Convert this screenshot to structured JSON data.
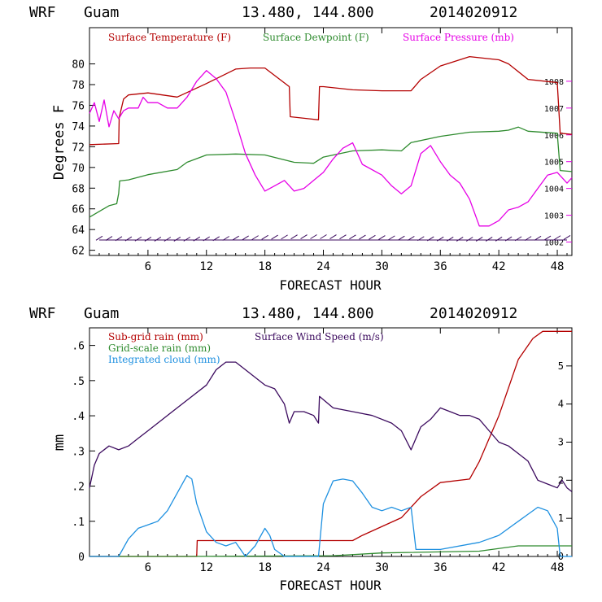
{
  "colors": {
    "temperature": "#b40000",
    "dewpoint": "#2e8b2e",
    "pressure": "#e600e6",
    "wind_barbs": "#3b0a5e",
    "subgrid_rain": "#b40000",
    "gridscale_rain": "#2e8b2e",
    "cloud": "#1e90e0",
    "wind_speed": "#3b0a5e"
  },
  "chart_data": [
    {
      "type": "line",
      "header": {
        "model": "WRF",
        "location": "Guam",
        "coords": "13.480, 144.800",
        "init": "2014020912"
      },
      "title": "",
      "xlabel": "FORECAST HOUR",
      "ylabel": "Degrees F",
      "xlim": [
        0,
        49.5
      ],
      "ylim": [
        61.5,
        83.5
      ],
      "y2lim": [
        1001.5,
        1010.0
      ],
      "xticks": [
        "6",
        "12",
        "18",
        "24",
        "30",
        "36",
        "42",
        "48"
      ],
      "yticks": [
        "62",
        "64",
        "66",
        "68",
        "70",
        "72",
        "74",
        "76",
        "78",
        "80"
      ],
      "y2ticks": [
        "1002",
        "1003",
        "1004",
        "1005",
        "1006",
        "1007",
        "1008"
      ],
      "grid": false,
      "legend_position": "top",
      "series": [
        {
          "name": "Surface Temperature (F)",
          "axis": "left",
          "x": [
            0,
            3,
            3.05,
            3.5,
            4,
            6,
            9,
            12,
            15,
            16.5,
            17.5,
            18,
            20.5,
            20.6,
            23.5,
            23.6,
            24,
            27,
            30,
            33,
            34,
            36,
            39,
            42,
            43,
            45,
            47,
            48,
            48.3,
            49.5
          ],
          "values": [
            72.2,
            72.3,
            74.8,
            76.6,
            77.0,
            77.2,
            76.8,
            78.1,
            79.5,
            79.6,
            79.6,
            79.6,
            77.8,
            74.9,
            74.6,
            77.8,
            77.8,
            77.5,
            77.4,
            77.4,
            78.5,
            79.8,
            80.7,
            80.4,
            80.0,
            78.5,
            78.3,
            78.2,
            73.3,
            73.2
          ]
        },
        {
          "name": "Surface Dewpoint (F)",
          "axis": "left",
          "x": [
            0,
            2,
            2.8,
            3,
            3.1,
            4,
            6,
            9,
            10,
            12,
            15,
            18,
            21,
            23,
            24,
            27,
            30,
            32,
            33,
            36,
            39,
            42,
            43,
            44,
            45,
            48,
            48.3,
            49.5
          ],
          "values": [
            65.2,
            66.3,
            66.5,
            67.5,
            68.7,
            68.8,
            69.3,
            69.8,
            70.5,
            71.2,
            71.3,
            71.2,
            70.5,
            70.4,
            71.0,
            71.6,
            71.7,
            71.6,
            72.4,
            73.0,
            73.4,
            73.5,
            73.6,
            73.9,
            73.5,
            73.3,
            69.7,
            69.6
          ]
        },
        {
          "name": "Surface Pressure (mb)",
          "axis": "right",
          "x": [
            0,
            0.5,
            1,
            1.5,
            2,
            2.5,
            3,
            3.5,
            4,
            5,
            5.5,
            6,
            7,
            8,
            9,
            10,
            11,
            12,
            13,
            14,
            15,
            16,
            17,
            18,
            19,
            20,
            21,
            22,
            23,
            24,
            25,
            26,
            27,
            28,
            30,
            31,
            32,
            33,
            34,
            35,
            36,
            37,
            38,
            39,
            40,
            41,
            42,
            43,
            44,
            45,
            46,
            47,
            48,
            49,
            49.5
          ],
          "values": [
            1006.8,
            1007.2,
            1006.5,
            1007.3,
            1006.3,
            1006.9,
            1006.6,
            1006.9,
            1007.0,
            1007.0,
            1007.4,
            1007.2,
            1007.2,
            1007.0,
            1007.0,
            1007.4,
            1008.0,
            1008.4,
            1008.1,
            1007.6,
            1006.5,
            1005.3,
            1004.5,
            1003.9,
            1004.1,
            1004.3,
            1003.9,
            1004.0,
            1004.3,
            1004.6,
            1005.1,
            1005.5,
            1005.7,
            1004.9,
            1004.5,
            1004.1,
            1003.8,
            1004.1,
            1005.3,
            1005.6,
            1005.0,
            1004.5,
            1004.2,
            1003.6,
            1002.6,
            1002.6,
            1002.8,
            1003.2,
            1003.3,
            1003.5,
            1004.0,
            1004.5,
            1004.6,
            1004.2,
            1004.4
          ]
        }
      ]
    },
    {
      "type": "line",
      "header": {
        "model": "WRF",
        "location": "Guam",
        "coords": "13.480, 144.800",
        "init": "2014020912"
      },
      "title": "",
      "xlabel": "FORECAST HOUR",
      "ylabel": "mm",
      "xlim": [
        0,
        49.5
      ],
      "ylim": [
        0,
        0.65
      ],
      "y2lim": [
        0,
        6.0
      ],
      "xticks": [
        "6",
        "12",
        "18",
        "24",
        "30",
        "36",
        "42",
        "48"
      ],
      "yticks": [
        "0",
        ".1",
        ".2",
        ".3",
        ".4",
        ".5",
        ".6"
      ],
      "y2ticks": [
        "0",
        "1",
        "2",
        "3",
        "4",
        "5"
      ],
      "grid": false,
      "legend_position": "top-left",
      "series": [
        {
          "name": "Sub-grid rain (mm)",
          "axis": "left",
          "x": [
            0,
            11,
            11.05,
            27,
            28,
            32,
            34,
            36,
            39,
            40,
            42,
            44,
            45.5,
            46.5,
            49.5
          ],
          "values": [
            0,
            0,
            0.045,
            0.045,
            0.06,
            0.11,
            0.17,
            0.21,
            0.22,
            0.27,
            0.4,
            0.56,
            0.62,
            0.64,
            0.64
          ]
        },
        {
          "name": "Grid-scale rain (mm)",
          "axis": "left",
          "x": [
            0,
            10,
            25,
            30,
            40,
            44,
            49.5
          ],
          "values": [
            0,
            0,
            0.002,
            0.01,
            0.015,
            0.03,
            0.03
          ]
        },
        {
          "name": "Integrated cloud (mm)",
          "axis": "left",
          "x": [
            0,
            3,
            4,
            5,
            6,
            7,
            8,
            9,
            10,
            10.5,
            11,
            12,
            13,
            14,
            15,
            15.5,
            16,
            17,
            18,
            18.5,
            19,
            20,
            23.5,
            24,
            25,
            26,
            27,
            28,
            29,
            30,
            31,
            32,
            33,
            33.5,
            36,
            40,
            42,
            44,
            45,
            46,
            47,
            48,
            48.3,
            49.5
          ],
          "values": [
            0,
            0,
            0.05,
            0.08,
            0.09,
            0.1,
            0.13,
            0.18,
            0.23,
            0.22,
            0.15,
            0.07,
            0.04,
            0.03,
            0.04,
            0.02,
            0,
            0.03,
            0.08,
            0.06,
            0.02,
            0,
            0,
            0.15,
            0.215,
            0.22,
            0.215,
            0.18,
            0.14,
            0.13,
            0.14,
            0.13,
            0.14,
            0.02,
            0.02,
            0.04,
            0.06,
            0.1,
            0.12,
            0.14,
            0.13,
            0.08,
            0,
            0
          ]
        },
        {
          "name": "Surface Wind Speed (m/s)",
          "axis": "right",
          "x": [
            0,
            0.5,
            1,
            2,
            3,
            4,
            5,
            6,
            8,
            10,
            12,
            13,
            14,
            15,
            16,
            18,
            19,
            20,
            20.5,
            21,
            22,
            23,
            23.5,
            23.6,
            25,
            27,
            29,
            31,
            32,
            33,
            34,
            35,
            36,
            37,
            38,
            39,
            40,
            41,
            42,
            43,
            44,
            45,
            46,
            47,
            48,
            48.5,
            49,
            49.5
          ],
          "values": [
            1.8,
            2.4,
            2.7,
            2.9,
            2.8,
            2.9,
            3.1,
            3.3,
            3.7,
            4.1,
            4.5,
            4.9,
            5.1,
            5.1,
            4.9,
            4.5,
            4.4,
            4.0,
            3.5,
            3.8,
            3.8,
            3.7,
            3.5,
            4.2,
            3.9,
            3.8,
            3.7,
            3.5,
            3.3,
            2.8,
            3.4,
            3.6,
            3.9,
            3.8,
            3.7,
            3.7,
            3.6,
            3.3,
            3.0,
            2.9,
            2.7,
            2.5,
            2.0,
            1.9,
            1.8,
            2.0,
            1.8,
            1.7
          ]
        }
      ]
    }
  ]
}
